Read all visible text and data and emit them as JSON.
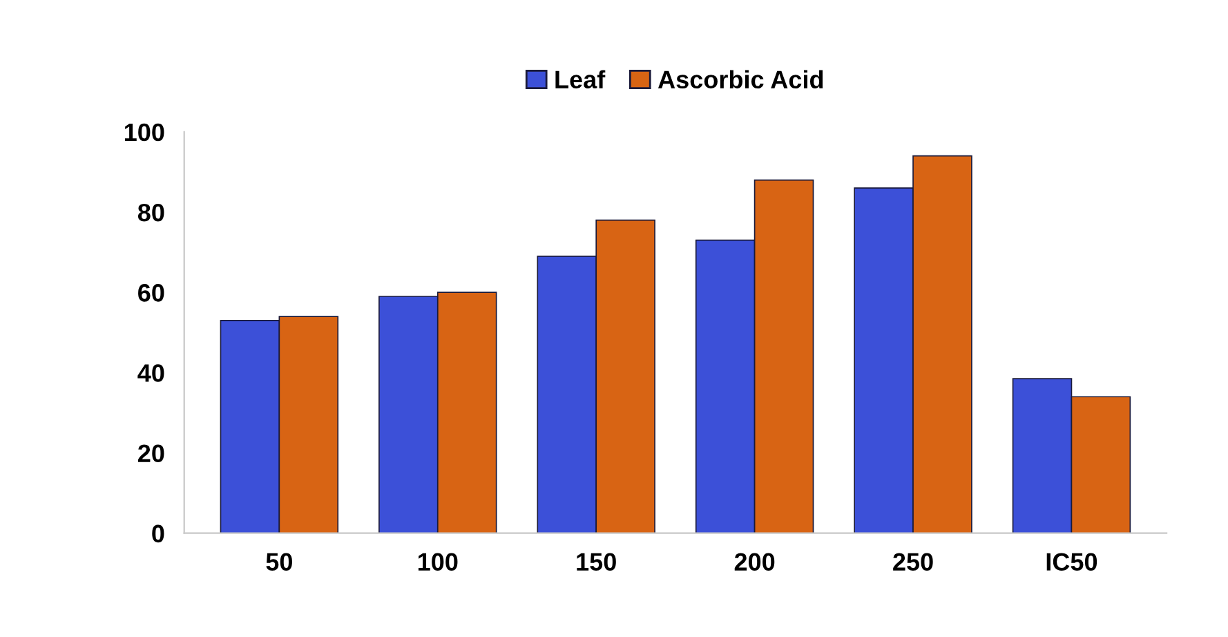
{
  "chart_data": {
    "type": "bar",
    "categories": [
      "50",
      "100",
      "150",
      "200",
      "250",
      "IC50"
    ],
    "series": [
      {
        "name": "Leaf",
        "color": "#3c50d8",
        "values": [
          53,
          59,
          69,
          73,
          86,
          38.5
        ]
      },
      {
        "name": "Ascorbic Acid",
        "color": "#d86414",
        "values": [
          54,
          60,
          78,
          88,
          94,
          34
        ]
      }
    ],
    "ylim": [
      0,
      100
    ],
    "yticks": [
      0,
      20,
      40,
      60,
      80,
      100
    ],
    "grid": false,
    "legend": "top"
  }
}
